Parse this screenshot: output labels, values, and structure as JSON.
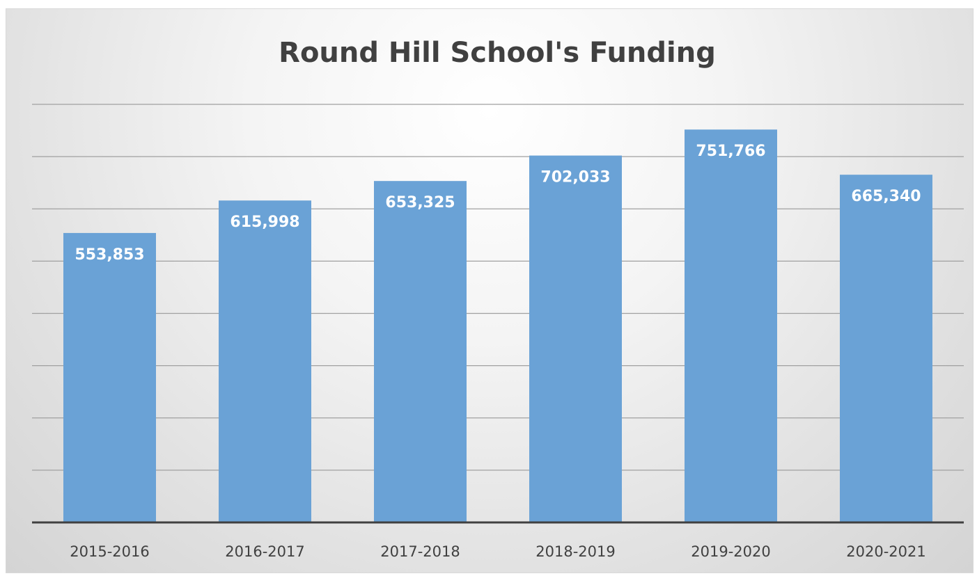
{
  "chart_data": {
    "type": "bar",
    "title": "Round Hill School's Funding",
    "categories": [
      "2015-2016",
      "2016-2017",
      "2017-2018",
      "2018-2019",
      "2019-2020",
      "2020-2021"
    ],
    "values": [
      553853,
      615998,
      653325,
      702033,
      751766,
      665340
    ],
    "value_labels": [
      "553,853",
      "615,998",
      "653,325",
      "702,033",
      "751,766",
      "665,340"
    ],
    "ylim": [
      0,
      800000
    ],
    "y_gridline_step": 100000,
    "y_tick_labels_shown": false,
    "grid": true,
    "legend": "none",
    "xlabel": "",
    "ylabel": ""
  },
  "colors": {
    "bar": "#6aa2d6",
    "gridline": "#a0a0a0",
    "axis": "#404040",
    "title": "#404040"
  }
}
